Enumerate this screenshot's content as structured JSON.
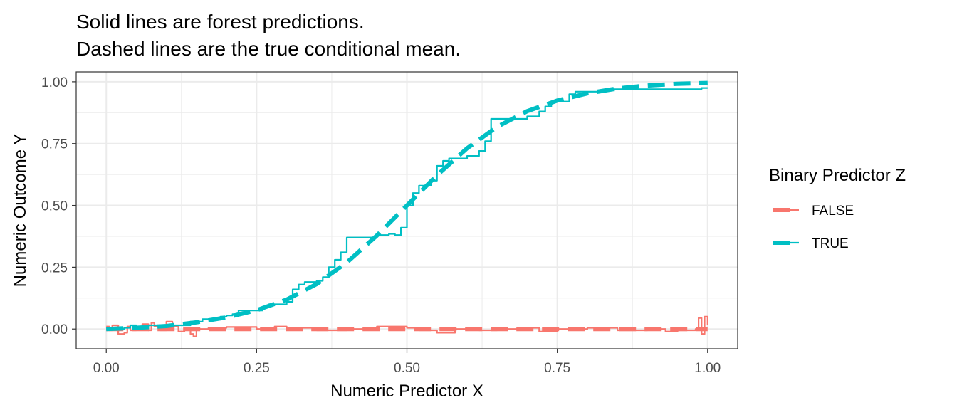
{
  "title_lines": [
    "Solid lines are forest predictions.",
    "Dashed lines are the true conditional mean."
  ],
  "chart_data": {
    "type": "line",
    "xlabel": "Numeric Predictor X",
    "ylabel": "Numeric Outcome Y",
    "xlim": [
      -0.05,
      1.05
    ],
    "ylim": [
      -0.08,
      1.04
    ],
    "x_ticks": [
      0,
      0.25,
      0.5,
      0.75,
      1
    ],
    "x_tick_labels": [
      "0.00",
      "0.25",
      "0.50",
      "0.75",
      "1.00"
    ],
    "y_ticks": [
      0,
      0.25,
      0.5,
      0.75,
      1
    ],
    "y_tick_labels": [
      "0.00",
      "0.25",
      "0.50",
      "0.75",
      "1.00"
    ],
    "grid": true,
    "legend": {
      "title": "Binary Predictor Z",
      "placement": "right",
      "entries": [
        {
          "label": "FALSE",
          "color": "#F8766D"
        },
        {
          "label": "TRUE",
          "color": "#00BFC4"
        }
      ]
    },
    "series": [
      {
        "name": "FALSE",
        "style": "forest predictions (solid)",
        "color": "#F8766D",
        "x": [
          0,
          0.005,
          0.01,
          0.02,
          0.03,
          0.035,
          0.04,
          0.05,
          0.06,
          0.07,
          0.075,
          0.08,
          0.09,
          0.1,
          0.11,
          0.12,
          0.13,
          0.14,
          0.145,
          0.15,
          0.17,
          0.2,
          0.25,
          0.28,
          0.3,
          0.35,
          0.4,
          0.43,
          0.45,
          0.5,
          0.52,
          0.55,
          0.58,
          0.6,
          0.62,
          0.65,
          0.7,
          0.72,
          0.75,
          0.8,
          0.85,
          0.9,
          0.93,
          0.95,
          0.98,
          0.985,
          0.99,
          0.995,
          1.0
        ],
        "y": [
          0.01,
          -0.005,
          0.015,
          -0.02,
          -0.015,
          0.01,
          -0.005,
          0.005,
          0.02,
          -0.005,
          0.025,
          0.01,
          -0.005,
          0.03,
          0.01,
          -0.01,
          0.005,
          -0.02,
          -0.03,
          0.0,
          0.005,
          0.008,
          0.0,
          0.01,
          0.005,
          -0.005,
          0.0,
          0.005,
          0.01,
          0.005,
          -0.005,
          -0.015,
          0.0,
          0.005,
          -0.005,
          0.0,
          0.005,
          -0.01,
          0.0,
          0.005,
          -0.005,
          0.0,
          -0.01,
          -0.005,
          0.0,
          0.045,
          -0.02,
          0.05,
          0.015
        ]
      },
      {
        "name": "FALSE",
        "style": "true conditional mean (dashed)",
        "color": "#F8766D",
        "x": [
          0,
          1
        ],
        "y": [
          0,
          0
        ]
      },
      {
        "name": "TRUE",
        "style": "forest predictions (solid)",
        "color": "#00BFC4",
        "x": [
          0,
          0.03,
          0.04,
          0.05,
          0.06,
          0.07,
          0.09,
          0.1,
          0.14,
          0.16,
          0.19,
          0.2,
          0.21,
          0.22,
          0.24,
          0.26,
          0.27,
          0.29,
          0.3,
          0.31,
          0.32,
          0.33,
          0.35,
          0.36,
          0.37,
          0.38,
          0.39,
          0.4,
          0.42,
          0.45,
          0.46,
          0.47,
          0.48,
          0.49,
          0.5,
          0.51,
          0.52,
          0.53,
          0.54,
          0.55,
          0.56,
          0.57,
          0.58,
          0.6,
          0.62,
          0.63,
          0.64,
          0.65,
          0.67,
          0.7,
          0.72,
          0.73,
          0.74,
          0.76,
          0.77,
          0.78,
          0.8,
          0.82,
          0.84,
          0.86,
          0.88,
          0.9,
          0.93,
          0.95,
          0.97,
          0.98,
          0.99,
          1.0
        ],
        "y": [
          0.0,
          0.005,
          0.015,
          0.01,
          0.01,
          0.015,
          0.01,
          0.015,
          0.03,
          0.04,
          0.05,
          0.055,
          0.06,
          0.075,
          0.075,
          0.09,
          0.1,
          0.1,
          0.11,
          0.16,
          0.18,
          0.19,
          0.195,
          0.21,
          0.25,
          0.28,
          0.31,
          0.37,
          0.37,
          0.38,
          0.38,
          0.385,
          0.38,
          0.41,
          0.5,
          0.55,
          0.58,
          0.58,
          0.6,
          0.66,
          0.68,
          0.69,
          0.69,
          0.7,
          0.72,
          0.76,
          0.85,
          0.85,
          0.85,
          0.86,
          0.88,
          0.9,
          0.92,
          0.92,
          0.95,
          0.96,
          0.96,
          0.965,
          0.97,
          0.97,
          0.97,
          0.97,
          0.97,
          0.97,
          0.97,
          0.97,
          0.975,
          0.975
        ]
      },
      {
        "name": "TRUE",
        "style": "true conditional mean (dashed)",
        "color": "#00BFC4",
        "x": [
          0,
          0.05,
          0.1,
          0.15,
          0.2,
          0.25,
          0.3,
          0.35,
          0.4,
          0.45,
          0.5,
          0.55,
          0.6,
          0.65,
          0.7,
          0.75,
          0.8,
          0.85,
          0.9,
          0.95,
          1.0
        ],
        "y": [
          0.0,
          0.005,
          0.012,
          0.027,
          0.047,
          0.076,
          0.119,
          0.182,
          0.269,
          0.378,
          0.5,
          0.622,
          0.731,
          0.818,
          0.881,
          0.924,
          0.953,
          0.973,
          0.985,
          0.992,
          0.995
        ]
      }
    ]
  }
}
